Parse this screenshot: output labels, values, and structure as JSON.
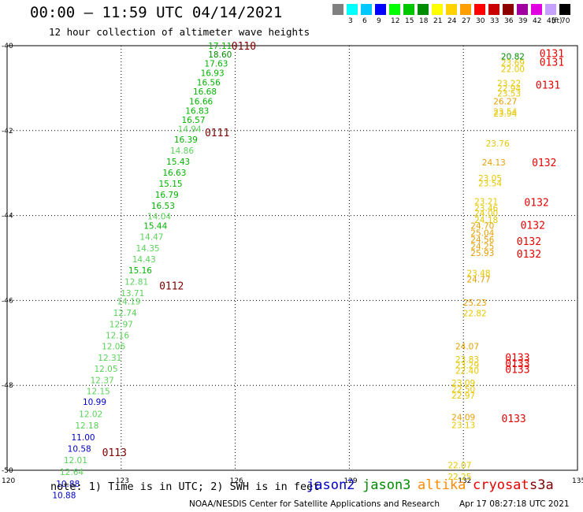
{
  "header": {
    "title": "00:00 — 11:59 UTC 04/14/2021",
    "subtitle": "12 hour collection of altimeter wave heights"
  },
  "colorbar": {
    "unit": "(ft)",
    "bins": [
      {
        "label": "",
        "color": "#808080"
      },
      {
        "label": "3",
        "color": "#00ffff"
      },
      {
        "label": "6",
        "color": "#00c8ff"
      },
      {
        "label": "9",
        "color": "#0000ff"
      },
      {
        "label": "12",
        "color": "#00ff00"
      },
      {
        "label": "15",
        "color": "#00c800"
      },
      {
        "label": "18",
        "color": "#008c00"
      },
      {
        "label": "21",
        "color": "#ffff00"
      },
      {
        "label": "24",
        "color": "#ffd200"
      },
      {
        "label": "27",
        "color": "#ffa000"
      },
      {
        "label": "30",
        "color": "#ff0000"
      },
      {
        "label": "33",
        "color": "#c80000"
      },
      {
        "label": "36",
        "color": "#8c0000"
      },
      {
        "label": "39",
        "color": "#a000a0"
      },
      {
        "label": "42",
        "color": "#e000e0"
      },
      {
        "label": "45",
        "color": "#c8a0ff"
      },
      {
        "label": "70",
        "color": "#000000"
      }
    ]
  },
  "map": {
    "lon_range": [
      120,
      135
    ],
    "lat_range": [
      -50,
      -40
    ],
    "lon_ticks": [
      120,
      123,
      126,
      129,
      132,
      135
    ],
    "lat_ticks": [
      -40,
      -42,
      -44,
      -46,
      -48,
      -50
    ],
    "lon_tick_labels": [
      "120",
      "123",
      "126",
      "129",
      "132",
      "135"
    ],
    "lat_tick_labels": [
      "-40",
      "-42",
      "-44",
      "-46",
      "-48",
      "-50"
    ],
    "satellite_colors": {
      "jason2": "#0000c8",
      "jason3": "#008c00",
      "altika": "#ff8c00",
      "cryosat": "#e60000",
      "s3a": "#800000"
    },
    "track_a_labels": [
      {
        "value": "17.11",
        "lon": 125.6,
        "lat": -40.0,
        "color": "#00b400"
      },
      {
        "value": "18.60",
        "lon": 125.6,
        "lat": -40.2,
        "color": "#008c00"
      },
      {
        "value": "17.63",
        "lon": 125.5,
        "lat": -40.42,
        "color": "#00b400"
      },
      {
        "value": "16.93",
        "lon": 125.4,
        "lat": -40.64,
        "color": "#00b400"
      },
      {
        "value": "16.56",
        "lon": 125.3,
        "lat": -40.86,
        "color": "#00b400"
      },
      {
        "value": "16.68",
        "lon": 125.2,
        "lat": -41.08,
        "color": "#00b400"
      },
      {
        "value": "16.66",
        "lon": 125.1,
        "lat": -41.31,
        "color": "#00b400"
      },
      {
        "value": "16.83",
        "lon": 125.0,
        "lat": -41.53,
        "color": "#00b400"
      },
      {
        "value": "16.57",
        "lon": 124.9,
        "lat": -41.74,
        "color": "#00b400"
      },
      {
        "value": "14.94",
        "lon": 124.8,
        "lat": -41.96,
        "color": "#5ad25a"
      },
      {
        "value": "16.39",
        "lon": 124.7,
        "lat": -42.21,
        "color": "#00b400"
      },
      {
        "value": "14.86",
        "lon": 124.6,
        "lat": -42.47,
        "color": "#5ad25a"
      },
      {
        "value": "15.43",
        "lon": 124.5,
        "lat": -42.73,
        "color": "#00b400"
      },
      {
        "value": "16.63",
        "lon": 124.4,
        "lat": -42.99,
        "color": "#00b400"
      },
      {
        "value": "15.15",
        "lon": 124.3,
        "lat": -43.25,
        "color": "#00b400"
      },
      {
        "value": "16.79",
        "lon": 124.2,
        "lat": -43.51,
        "color": "#00b400"
      },
      {
        "value": "16.53",
        "lon": 124.1,
        "lat": -43.77,
        "color": "#00b400"
      },
      {
        "value": "14.04",
        "lon": 124.0,
        "lat": -44.02,
        "color": "#5ad25a"
      },
      {
        "value": "15.44",
        "lon": 123.9,
        "lat": -44.24,
        "color": "#00b400"
      },
      {
        "value": "14.47",
        "lon": 123.8,
        "lat": -44.5,
        "color": "#5ad25a"
      },
      {
        "value": "14.35",
        "lon": 123.7,
        "lat": -44.77,
        "color": "#5ad25a"
      },
      {
        "value": "14.43",
        "lon": 123.6,
        "lat": -45.03,
        "color": "#5ad25a"
      },
      {
        "value": "15.16",
        "lon": 123.5,
        "lat": -45.29,
        "color": "#00b400"
      },
      {
        "value": "12.81",
        "lon": 123.4,
        "lat": -45.56,
        "color": "#5ad25a"
      },
      {
        "value": "13.71",
        "lon": 123.3,
        "lat": -45.83,
        "color": "#5ad25a"
      },
      {
        "value": "14.19",
        "lon": 123.2,
        "lat": -46.02,
        "color": "#5ad25a"
      },
      {
        "value": "12.74",
        "lon": 123.1,
        "lat": -46.29,
        "color": "#5ad25a"
      },
      {
        "value": "12.97",
        "lon": 123.0,
        "lat": -46.56,
        "color": "#5ad25a"
      },
      {
        "value": "12.16",
        "lon": 122.9,
        "lat": -46.82,
        "color": "#5ad25a"
      },
      {
        "value": "12.06",
        "lon": 122.8,
        "lat": -47.08,
        "color": "#5ad25a"
      },
      {
        "value": "12.31",
        "lon": 122.7,
        "lat": -47.35,
        "color": "#5ad25a"
      },
      {
        "value": "12.05",
        "lon": 122.6,
        "lat": -47.61,
        "color": "#5ad25a"
      },
      {
        "value": "12.37",
        "lon": 122.5,
        "lat": -47.88,
        "color": "#5ad25a"
      },
      {
        "value": "12.15",
        "lon": 122.4,
        "lat": -48.14,
        "color": "#5ad25a"
      },
      {
        "value": "10.99",
        "lon": 122.3,
        "lat": -48.39,
        "color": "#0000c8"
      },
      {
        "value": "12.02",
        "lon": 122.2,
        "lat": -48.67,
        "color": "#5ad25a"
      },
      {
        "value": "12.18",
        "lon": 122.1,
        "lat": -48.94,
        "color": "#5ad25a"
      },
      {
        "value": "11.00",
        "lon": 122.0,
        "lat": -49.22,
        "color": "#0000c8"
      },
      {
        "value": "10.58",
        "lon": 121.9,
        "lat": -49.49,
        "color": "#0000c8"
      },
      {
        "value": "12.01",
        "lon": 121.8,
        "lat": -49.76,
        "color": "#5ad25a"
      },
      {
        "value": "12.64",
        "lon": 121.7,
        "lat": -50.04,
        "color": "#5ad25a"
      },
      {
        "value": "10.88",
        "lon": 121.6,
        "lat": -50.32,
        "color": "#0000c8"
      },
      {
        "value": "10.88",
        "lon": 121.5,
        "lat": -50.58,
        "color": "#0000c8"
      }
    ],
    "track_a_times": [
      {
        "text": "0110",
        "lon": 125.9,
        "lat": -40.0
      },
      {
        "text": "0111",
        "lon": 125.2,
        "lat": -42.04
      },
      {
        "text": "0112",
        "lon": 124.0,
        "lat": -45.65
      },
      {
        "text": "0113",
        "lon": 122.5,
        "lat": -49.57
      }
    ],
    "track_b_labels": [
      {
        "value": "20.82",
        "lon": 133.3,
        "lat": -40.25,
        "color": "#008c00"
      },
      {
        "value": "23.69",
        "lon": 133.3,
        "lat": -40.4,
        "color": "#e6c800"
      },
      {
        "value": "22.00",
        "lon": 133.3,
        "lat": -40.55,
        "color": "#e6c800"
      },
      {
        "value": "23.22",
        "lon": 133.2,
        "lat": -40.88,
        "color": "#e6c800"
      },
      {
        "value": "22.94",
        "lon": 133.2,
        "lat": -41.0,
        "color": "#e6c800"
      },
      {
        "value": "23.53",
        "lon": 133.2,
        "lat": -41.12,
        "color": "#e6c800"
      },
      {
        "value": "26.27",
        "lon": 133.1,
        "lat": -41.31,
        "color": "#e6a000"
      },
      {
        "value": "23.54",
        "lon": 133.1,
        "lat": -41.55,
        "color": "#e6c800"
      },
      {
        "value": "23.94",
        "lon": 133.1,
        "lat": -41.6,
        "color": "#e6c800"
      },
      {
        "value": "23.76",
        "lon": 132.9,
        "lat": -42.3,
        "color": "#e6c800"
      },
      {
        "value": "24.13",
        "lon": 132.8,
        "lat": -42.75,
        "color": "#e6a000"
      },
      {
        "value": "23.05",
        "lon": 132.7,
        "lat": -43.12,
        "color": "#e6c800"
      },
      {
        "value": "23.54",
        "lon": 132.7,
        "lat": -43.24,
        "color": "#e6c800"
      },
      {
        "value": "23.21",
        "lon": 132.6,
        "lat": -43.66,
        "color": "#e6c800"
      },
      {
        "value": "23.46",
        "lon": 132.6,
        "lat": -43.82,
        "color": "#e6c800"
      },
      {
        "value": "24.00",
        "lon": 132.6,
        "lat": -43.94,
        "color": "#e6c800"
      },
      {
        "value": "24.18",
        "lon": 132.6,
        "lat": -44.1,
        "color": "#e6c800"
      },
      {
        "value": "24.70",
        "lon": 132.5,
        "lat": -44.24,
        "color": "#e6a000"
      },
      {
        "value": "25.04",
        "lon": 132.5,
        "lat": -44.41,
        "color": "#e6a000"
      },
      {
        "value": "24.56",
        "lon": 132.5,
        "lat": -44.56,
        "color": "#e6a000"
      },
      {
        "value": "24.25",
        "lon": 132.5,
        "lat": -44.72,
        "color": "#e6a000"
      },
      {
        "value": "25.93",
        "lon": 132.5,
        "lat": -44.88,
        "color": "#e6a000"
      },
      {
        "value": "23.48",
        "lon": 132.4,
        "lat": -45.35,
        "color": "#e6c800"
      },
      {
        "value": "24.77",
        "lon": 132.4,
        "lat": -45.5,
        "color": "#e6a000"
      },
      {
        "value": "25.23",
        "lon": 132.3,
        "lat": -46.05,
        "color": "#e6a000"
      },
      {
        "value": "22.82",
        "lon": 132.3,
        "lat": -46.3,
        "color": "#e6c800"
      },
      {
        "value": "24.07",
        "lon": 132.1,
        "lat": -47.08,
        "color": "#e6a000"
      },
      {
        "value": "23.83",
        "lon": 132.1,
        "lat": -47.38,
        "color": "#e6c800"
      },
      {
        "value": "23.29",
        "lon": 132.1,
        "lat": -47.52,
        "color": "#e6c800"
      },
      {
        "value": "22.40",
        "lon": 132.1,
        "lat": -47.65,
        "color": "#e6c800"
      },
      {
        "value": "23.09",
        "lon": 132.0,
        "lat": -47.94,
        "color": "#e6c800"
      },
      {
        "value": "22.50",
        "lon": 132.0,
        "lat": -48.09,
        "color": "#e6c800"
      },
      {
        "value": "22.97",
        "lon": 132.0,
        "lat": -48.24,
        "color": "#e6c800"
      },
      {
        "value": "24.09",
        "lon": 132.0,
        "lat": -48.75,
        "color": "#e6a000"
      },
      {
        "value": "23.13",
        "lon": 132.0,
        "lat": -48.93,
        "color": "#e6c800"
      },
      {
        "value": "22.07",
        "lon": 131.9,
        "lat": -49.88,
        "color": "#e6c800"
      },
      {
        "value": "22.25",
        "lon": 131.9,
        "lat": -50.15,
        "color": "#e6c800"
      }
    ],
    "track_b_times": [
      {
        "text": "0131",
        "lon": 134.0,
        "lat": -40.18
      },
      {
        "text": "0131",
        "lon": 134.0,
        "lat": -40.38
      },
      {
        "text": "0131",
        "lon": 133.9,
        "lat": -40.92
      },
      {
        "text": "0132",
        "lon": 133.8,
        "lat": -42.75
      },
      {
        "text": "0132",
        "lon": 133.6,
        "lat": -43.68
      },
      {
        "text": "0132",
        "lon": 133.5,
        "lat": -44.22
      },
      {
        "text": "0132",
        "lon": 133.4,
        "lat": -44.6
      },
      {
        "text": "0132",
        "lon": 133.4,
        "lat": -44.9
      },
      {
        "text": "0133",
        "lon": 133.1,
        "lat": -47.34
      },
      {
        "text": "0133",
        "lon": 133.1,
        "lat": -47.48
      },
      {
        "text": "0133",
        "lon": 133.1,
        "lat": -47.62
      },
      {
        "text": "0133",
        "lon": 133.0,
        "lat": -48.78
      }
    ]
  },
  "footer": {
    "note": "note: 1) Time is in UTC; 2) SWH is in feet",
    "legend": [
      {
        "name": "jason2",
        "color": "#0000c8"
      },
      {
        "name": "jason3",
        "color": "#008c00"
      },
      {
        "name": "altika",
        "color": "#ff8c00"
      },
      {
        "name": "cryosat",
        "color": "#e60000"
      },
      {
        "name": "s3a",
        "color": "#800000"
      }
    ],
    "credit": "NOAA/NESDIS Center for Satellite Applications and Research",
    "timestamp": "Apr 17 08:27:18 UTC 2021"
  }
}
